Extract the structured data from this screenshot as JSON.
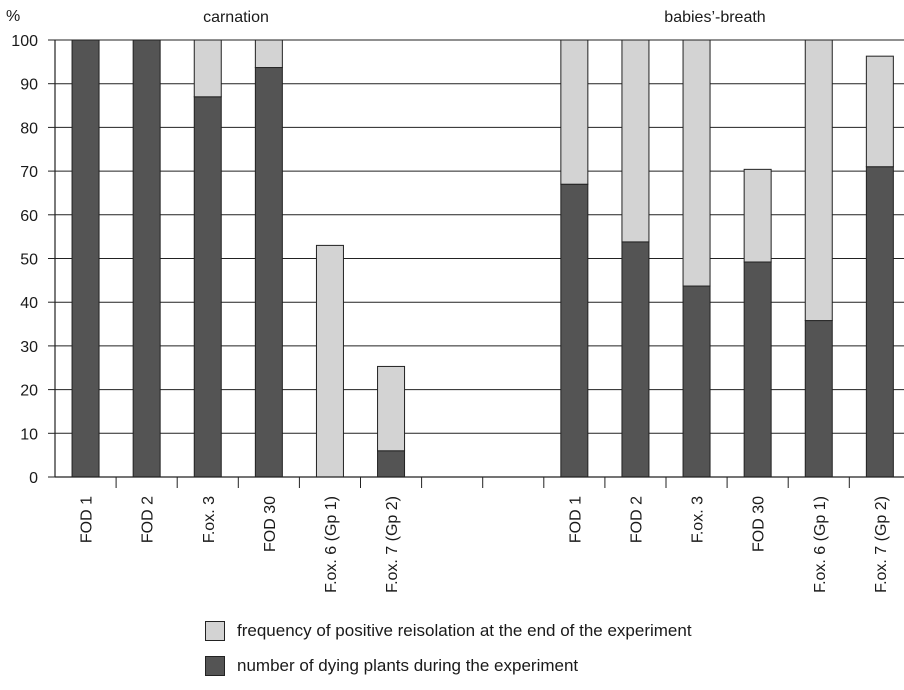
{
  "chart_data": {
    "type": "bar",
    "stacked": true,
    "ylabel": "%",
    "ylim": [
      0,
      100
    ],
    "yticks": [
      0,
      10,
      20,
      30,
      40,
      50,
      60,
      70,
      80,
      90,
      100
    ],
    "grid": true,
    "groups": [
      {
        "title": "carnation",
        "categories": [
          "FOD 1",
          "FOD 2",
          "F.ox. 3",
          "FOD 30",
          "F.ox. 6 (Gp 1)",
          "F.ox. 7 (Gp 2)"
        ],
        "series": [
          {
            "name": "number of dying plants during the experiment",
            "values": [
              100,
              100,
              87,
              93.7,
              0,
              6
            ]
          },
          {
            "name": "frequency of positive reisolation at the end of the experiment",
            "values": [
              0,
              0,
              13,
              6.3,
              53,
              19.3
            ]
          }
        ]
      },
      {
        "title": "babies’-breath",
        "categories": [
          "FOD 1",
          "FOD 2",
          "F.ox. 3",
          "FOD 30",
          "F.ox. 6 (Gp 1)",
          "F.ox. 7 (Gp 2)"
        ],
        "series": [
          {
            "name": "number of dying plants during the experiment",
            "values": [
              67,
              53.8,
              43.7,
              49.2,
              35.8,
              71
            ]
          },
          {
            "name": "frequency of positive reisolation at the end of the experiment",
            "values": [
              33,
              46.2,
              56.3,
              21.2,
              64.2,
              25.3
            ]
          }
        ]
      }
    ],
    "legend": [
      {
        "label": "frequency of positive reisolation at the end of the experiment",
        "color": "#d3d3d3"
      },
      {
        "label": "number of dying plants during the experiment",
        "color": "#545454"
      }
    ],
    "legend_position": "bottom"
  }
}
